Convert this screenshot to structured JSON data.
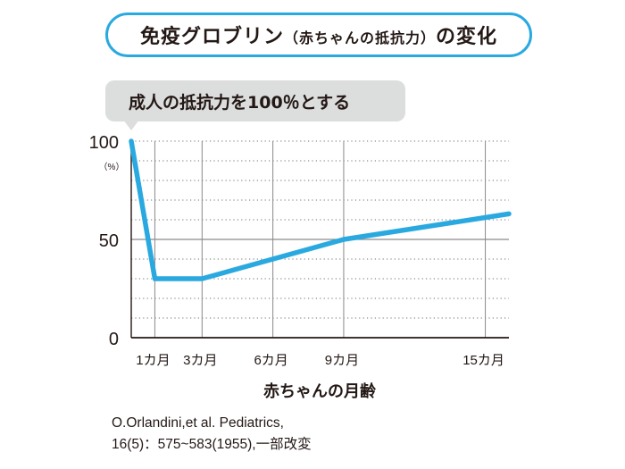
{
  "title": {
    "main": "免疫グロブリン",
    "paren": "（赤ちゃんの抵抗力）",
    "suffix": "の変化"
  },
  "annotation": "成人の抵抗力を100％とする",
  "chart_data": {
    "type": "line",
    "title": "免疫グロブリン（赤ちゃんの抵抗力）の変化",
    "xlabel": "赤ちゃんの月齢",
    "ylabel": "（%）",
    "ylim": [
      0,
      100
    ],
    "xlim": [
      0,
      16
    ],
    "yticks": [
      {
        "value": 0,
        "label": "0"
      },
      {
        "value": 50,
        "label": "50"
      },
      {
        "value": 100,
        "label": "100"
      }
    ],
    "xticks": [
      {
        "value": 1,
        "label": "1カ月"
      },
      {
        "value": 3,
        "label": "3カ月"
      },
      {
        "value": 6,
        "label": "6カ月"
      },
      {
        "value": 9,
        "label": "9カ月"
      },
      {
        "value": 15,
        "label": "15カ月"
      }
    ],
    "minor_grid_y": [
      10,
      20,
      30,
      40,
      60,
      70,
      80,
      90
    ],
    "grid": true,
    "series": [
      {
        "color": "#2aa9e0",
        "x": [
          0,
          1,
          3,
          6,
          9,
          16
        ],
        "y": [
          100,
          30,
          30,
          40,
          50,
          63
        ]
      }
    ]
  },
  "citation": {
    "line1": "O.Orlandini,et al. Pediatrics,",
    "line2": "16(5)：575~583(1955),一部改変"
  },
  "colors": {
    "accent": "#2aa9e0",
    "bubble": "#dcdddd",
    "text": "#231815"
  }
}
